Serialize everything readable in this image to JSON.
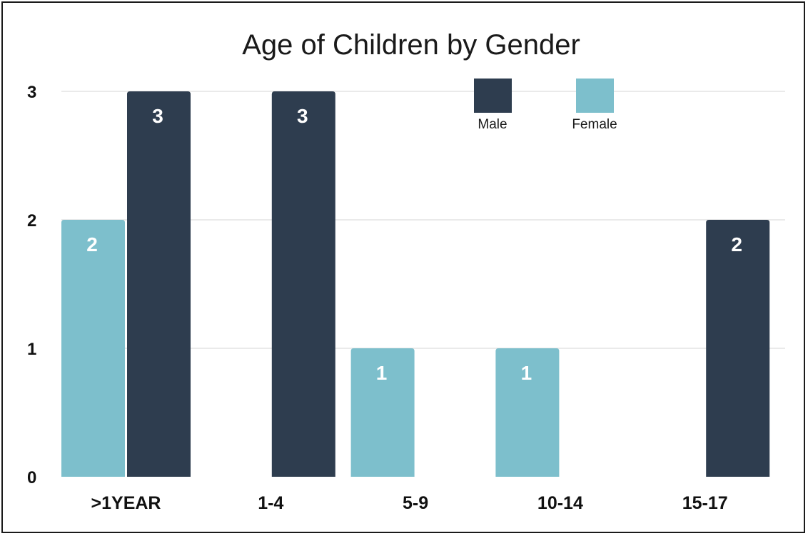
{
  "chart_data": {
    "type": "bar",
    "title": "Age of Children by Gender",
    "xlabel": "",
    "ylabel": "",
    "categories": [
      ">1YEAR",
      "1-4",
      "5-9",
      "10-14",
      "15-17"
    ],
    "series": [
      {
        "name": "Female",
        "color": "#7dbfcc",
        "values": [
          2,
          null,
          1,
          1,
          null
        ]
      },
      {
        "name": "Male",
        "color": "#2e3d4f",
        "values": [
          3,
          3,
          null,
          null,
          2
        ]
      }
    ],
    "ylim": [
      0,
      3
    ],
    "yticks": [
      "0",
      "1",
      "2",
      "3"
    ],
    "grid": true,
    "legend_position": "top-right"
  }
}
